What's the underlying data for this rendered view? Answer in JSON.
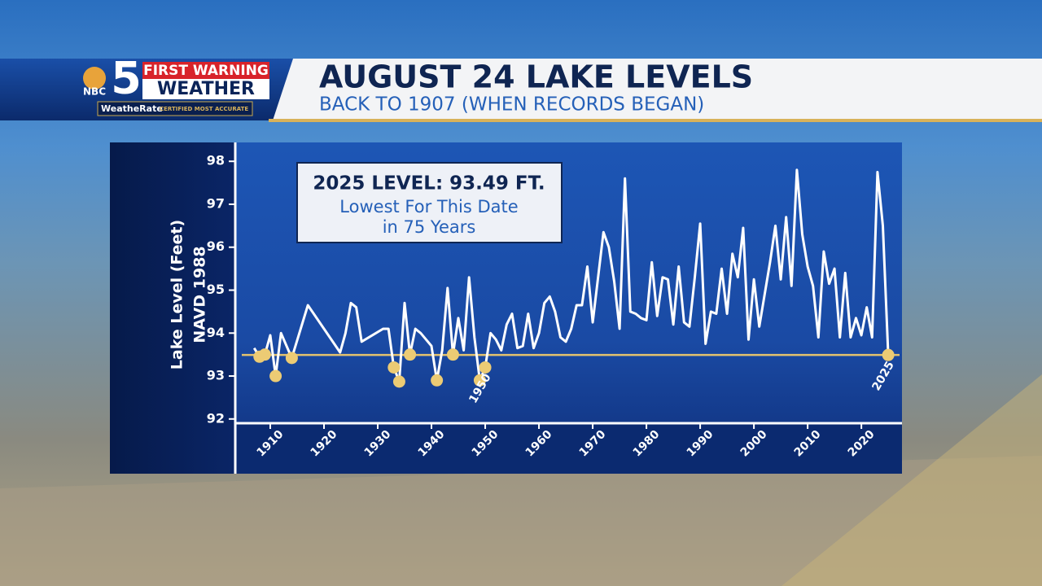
{
  "header": {
    "network": "NBC",
    "logo_number": "5",
    "badge_top": "FIRST WARNING",
    "badge_bottom": "WEATHER",
    "brand": "WeatheRate",
    "tagline": "CERTIFIED MOST ACCURATE"
  },
  "chart_data": {
    "type": "line",
    "title": "AUGUST 24 LAKE LEVELS",
    "subtitle": "BACK TO 1907 (WHEN RECORDS BEGAN)",
    "y_label": [
      "Lake Level (Feet)",
      "NAVD 1988"
    ],
    "annotation_box": {
      "title": "2025 LEVEL: 93.49 FT.",
      "lines": [
        "Lowest For This Date",
        "in 75 Years"
      ]
    },
    "x": [
      1907,
      1908,
      1909,
      1910,
      1911,
      1912,
      1914,
      1917,
      1923,
      1924,
      1925,
      1926,
      1927,
      1931,
      1932,
      1933,
      1934,
      1935,
      1936,
      1937,
      1938,
      1940,
      1941,
      1942,
      1943,
      1944,
      1945,
      1946,
      1947,
      1948,
      1949,
      1950,
      1951,
      1952,
      1953,
      1954,
      1955,
      1956,
      1957,
      1958,
      1959,
      1960,
      1961,
      1962,
      1963,
      1964,
      1965,
      1966,
      1967,
      1968,
      1969,
      1970,
      1971,
      1972,
      1973,
      1974,
      1975,
      1976,
      1977,
      1978,
      1979,
      1980,
      1981,
      1982,
      1983,
      1984,
      1985,
      1986,
      1987,
      1988,
      1989,
      1990,
      1991,
      1992,
      1993,
      1994,
      1995,
      1996,
      1997,
      1998,
      1999,
      2000,
      2001,
      2002,
      2003,
      2004,
      2005,
      2006,
      2007,
      2008,
      2009,
      2010,
      2011,
      2012,
      2013,
      2014,
      2015,
      2016,
      2017,
      2018,
      2019,
      2020,
      2021,
      2022,
      2023,
      2024,
      2025
    ],
    "values": [
      93.65,
      93.45,
      93.5,
      93.95,
      93.0,
      94.0,
      93.42,
      94.65,
      93.55,
      94.0,
      94.7,
      94.6,
      93.8,
      94.1,
      94.1,
      93.2,
      92.87,
      94.7,
      93.5,
      94.1,
      94.0,
      93.7,
      92.9,
      93.6,
      95.05,
      93.5,
      94.35,
      93.6,
      95.3,
      93.9,
      92.9,
      93.2,
      94.0,
      93.85,
      93.6,
      94.2,
      94.45,
      93.65,
      93.7,
      94.45,
      93.65,
      94.0,
      94.7,
      94.85,
      94.5,
      93.9,
      93.8,
      94.1,
      94.65,
      94.65,
      95.55,
      94.25,
      95.3,
      96.35,
      96.0,
      95.2,
      94.1,
      97.6,
      94.5,
      94.45,
      94.35,
      94.3,
      95.65,
      94.4,
      95.3,
      95.25,
      94.2,
      95.55,
      94.25,
      94.15,
      95.3,
      96.55,
      93.75,
      94.5,
      94.45,
      95.5,
      94.45,
      95.85,
      95.3,
      96.45,
      93.85,
      95.25,
      94.15,
      94.9,
      95.65,
      96.5,
      95.25,
      96.7,
      95.1,
      97.8,
      96.3,
      95.55,
      95.1,
      93.9,
      95.9,
      95.15,
      95.5,
      93.9,
      95.4,
      93.9,
      94.35,
      93.95,
      94.6,
      93.9,
      97.75,
      96.5,
      93.49
    ],
    "color": "#ffffff",
    "markers": {
      "x": [
        1908,
        1909,
        1911,
        1914,
        1933,
        1934,
        1936,
        1941,
        1944,
        1949,
        1950,
        2025
      ],
      "values": [
        93.45,
        93.5,
        93.0,
        93.42,
        93.2,
        92.87,
        93.5,
        92.9,
        93.5,
        92.9,
        93.2,
        93.49
      ],
      "color": "#eccb74"
    },
    "reference_line": 93.49,
    "reference_color": "#e3c26e",
    "annotations": [
      {
        "text": "1950",
        "x": 1950
      },
      {
        "text": "2025",
        "x": 2025
      }
    ],
    "xlim": [
      1904.7,
      2027.1
    ],
    "xticks": [
      1910,
      1920,
      1930,
      1940,
      1950,
      1960,
      1970,
      1980,
      1990,
      2000,
      2010,
      2020
    ],
    "ylim": [
      91.92,
      98.44
    ],
    "yticks": [
      92,
      93,
      94,
      95,
      96,
      97,
      98
    ]
  }
}
